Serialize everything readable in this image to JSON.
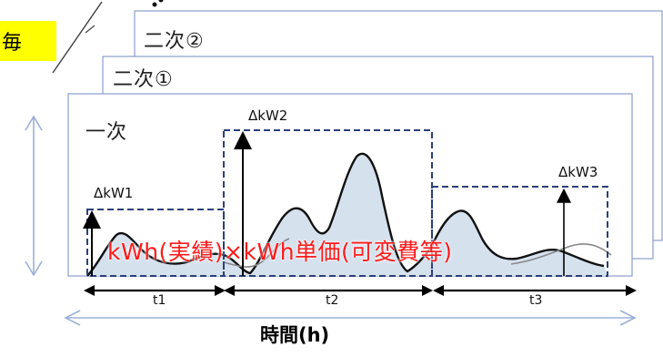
{
  "tag_label": "毎",
  "layers": {
    "secondary2": "二次②",
    "secondary1": "二次①",
    "primary": "一次"
  },
  "delta_kw": [
    "ΔkW1",
    "ΔkW2",
    "ΔkW3"
  ],
  "formula": "kWh(実績)×kWh単価(可変費等)",
  "time_segments": [
    "t1",
    "t2",
    "t3"
  ],
  "x_axis_label": "時間(h)",
  "colors": {
    "panel_border": "#8a9cc9",
    "dashed_box": "#2b3f7a",
    "area_fill": "#d6e1ee",
    "formula": "#ff1a1a",
    "highlight": "#ffff00",
    "axis_arrow": "#9bb0d8"
  }
}
